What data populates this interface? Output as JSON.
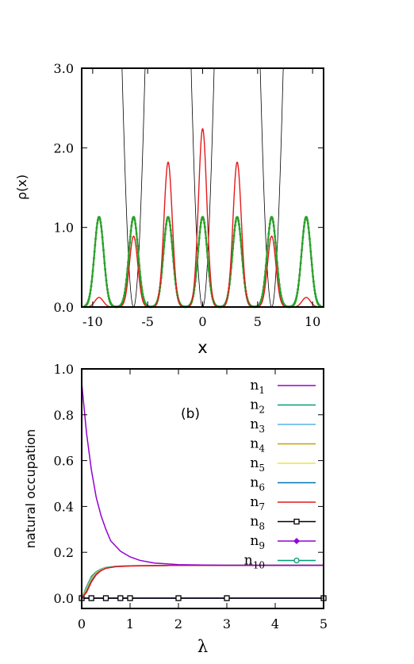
{
  "chart_data": [
    {
      "type": "line",
      "title": "",
      "xlabel": "x",
      "ylabel": "ρ(x)",
      "xlim": [
        -11,
        11
      ],
      "ylim": [
        0,
        3.0
      ],
      "xticks": [
        -10,
        -5,
        0,
        5,
        10
      ],
      "yticks": [
        0.0,
        1.0,
        2.0,
        3.0
      ],
      "xtick_labels": [
        "-10",
        "-5",
        "0",
        "5",
        "10"
      ],
      "ytick_labels": [
        "0.0",
        "1.0",
        "2.0",
        "3.0"
      ],
      "grid": false,
      "series": [
        {
          "role": "potential",
          "color": "#000000",
          "description_values": {
            "well_centers": [
              -9.42,
              -6.28,
              -3.14,
              0,
              3.14,
              6.28,
              9.42
            ],
            "form": "periodic cos^2 lattice, clipped at 3.0"
          }
        },
        {
          "role": "density-red",
          "color": "#e41a1c",
          "peaks": [
            {
              "x": -9.42,
              "y": 0.12
            },
            {
              "x": -6.28,
              "y": 0.89
            },
            {
              "x": -3.14,
              "y": 1.82
            },
            {
              "x": 0.0,
              "y": 2.24
            },
            {
              "x": 3.14,
              "y": 1.82
            },
            {
              "x": 6.28,
              "y": 0.89
            },
            {
              "x": 9.42,
              "y": 0.12
            }
          ]
        },
        {
          "role": "density-green",
          "color": "#2ca02c",
          "markers": true,
          "peaks": [
            {
              "x": -9.42,
              "y": 1.13
            },
            {
              "x": -6.28,
              "y": 1.13
            },
            {
              "x": -3.14,
              "y": 1.13
            },
            {
              "x": 0.0,
              "y": 1.13
            },
            {
              "x": 3.14,
              "y": 1.13
            },
            {
              "x": 6.28,
              "y": 1.13
            },
            {
              "x": 9.42,
              "y": 1.13
            }
          ]
        }
      ]
    },
    {
      "type": "line",
      "title": "",
      "panel_label": "(b)",
      "xlabel": "λ",
      "ylabel": "natural occupation",
      "xlim": [
        0,
        5
      ],
      "ylim": [
        -0.05,
        1.0
      ],
      "xticks": [
        0,
        1,
        2,
        3,
        4,
        5
      ],
      "yticks": [
        0.0,
        0.2,
        0.4,
        0.6,
        0.8,
        1.0
      ],
      "xtick_labels": [
        "0",
        "1",
        "2",
        "3",
        "4",
        "5"
      ],
      "ytick_labels": [
        "0.0",
        "0.2",
        "0.4",
        "0.6",
        "0.8",
        "1.0"
      ],
      "grid": false,
      "legend_position": "top-right",
      "series": [
        {
          "name_base": "n",
          "name_sub": "1",
          "color": "#9400d3",
          "marker": "none",
          "x": [
            0,
            0.1,
            0.2,
            0.3,
            0.4,
            0.5,
            0.6,
            0.8,
            1.0,
            1.2,
            1.5,
            2.0,
            3.0,
            4.0,
            5.0
          ],
          "values": [
            0.94,
            0.72,
            0.56,
            0.44,
            0.36,
            0.3,
            0.25,
            0.205,
            0.18,
            0.165,
            0.153,
            0.146,
            0.143,
            0.143,
            0.143
          ]
        },
        {
          "name_base": "n",
          "name_sub": "2",
          "color": "#009e73",
          "marker": "none",
          "x": [
            0,
            0.1,
            0.2,
            0.3,
            0.4,
            0.5,
            0.7,
            1.0,
            1.5,
            2.0,
            3.0,
            5.0
          ],
          "values": [
            0.0,
            0.05,
            0.095,
            0.115,
            0.127,
            0.134,
            0.139,
            0.141,
            0.142,
            0.143,
            0.143,
            0.143
          ]
        },
        {
          "name_base": "n",
          "name_sub": "3",
          "color": "#56b4e9",
          "marker": "none",
          "x": [
            0,
            0.1,
            0.2,
            0.3,
            0.4,
            0.5,
            0.7,
            1.0,
            1.5,
            2.0,
            3.0,
            5.0
          ],
          "values": [
            0.0,
            0.045,
            0.09,
            0.112,
            0.125,
            0.133,
            0.139,
            0.141,
            0.142,
            0.143,
            0.143,
            0.143
          ]
        },
        {
          "name_base": "n",
          "name_sub": "4",
          "color": "#c8a000",
          "marker": "none",
          "x": [
            0,
            0.1,
            0.2,
            0.3,
            0.4,
            0.5,
            0.7,
            1.0,
            1.5,
            2.0,
            3.0,
            5.0
          ],
          "values": [
            0.0,
            0.04,
            0.085,
            0.11,
            0.124,
            0.132,
            0.138,
            0.141,
            0.142,
            0.143,
            0.143,
            0.143
          ]
        },
        {
          "name_base": "n",
          "name_sub": "5",
          "color": "#f0e442",
          "marker": "none",
          "x": [
            0,
            0.1,
            0.2,
            0.3,
            0.4,
            0.5,
            0.7,
            1.0,
            1.5,
            2.0,
            3.0,
            5.0
          ],
          "values": [
            0.0,
            0.035,
            0.08,
            0.108,
            0.123,
            0.132,
            0.138,
            0.141,
            0.142,
            0.143,
            0.143,
            0.143
          ]
        },
        {
          "name_base": "n",
          "name_sub": "6",
          "color": "#0072b2",
          "marker": "none",
          "x": [
            0,
            0.1,
            0.2,
            0.3,
            0.4,
            0.5,
            0.7,
            1.0,
            1.5,
            2.0,
            3.0,
            5.0
          ],
          "values": [
            0.0,
            0.03,
            0.075,
            0.105,
            0.121,
            0.131,
            0.138,
            0.141,
            0.142,
            0.143,
            0.143,
            0.143
          ]
        },
        {
          "name_base": "n",
          "name_sub": "7",
          "color": "#e41a1c",
          "marker": "none",
          "x": [
            0,
            0.1,
            0.2,
            0.3,
            0.4,
            0.5,
            0.7,
            1.0,
            1.5,
            2.0,
            3.0,
            5.0
          ],
          "values": [
            0.0,
            0.025,
            0.07,
            0.102,
            0.12,
            0.13,
            0.137,
            0.14,
            0.142,
            0.143,
            0.143,
            0.143
          ]
        },
        {
          "name_base": "n",
          "name_sub": "8",
          "color": "#000000",
          "marker": "square",
          "x": [
            0,
            0.2,
            0.5,
            0.8,
            1.0,
            2.0,
            3.0,
            5.0
          ],
          "values": [
            0,
            0,
            0,
            0,
            0,
            0,
            0,
            0
          ]
        },
        {
          "name_base": "n",
          "name_sub": "9",
          "color": "#9400d3",
          "marker": "diamond",
          "x": [
            0,
            0.2,
            0.5,
            0.8,
            1.0,
            2.0,
            3.0,
            5.0
          ],
          "values": [
            0,
            0,
            0,
            0,
            0,
            0,
            0,
            0
          ]
        },
        {
          "name_base": "n",
          "name_sub": "10",
          "color": "#009e73",
          "marker": "circle",
          "x": [
            0,
            0.2,
            0.5,
            0.8,
            1.0,
            2.0,
            3.0,
            5.0
          ],
          "values": [
            0,
            0,
            0,
            0,
            0,
            0,
            0,
            0
          ]
        }
      ]
    }
  ]
}
